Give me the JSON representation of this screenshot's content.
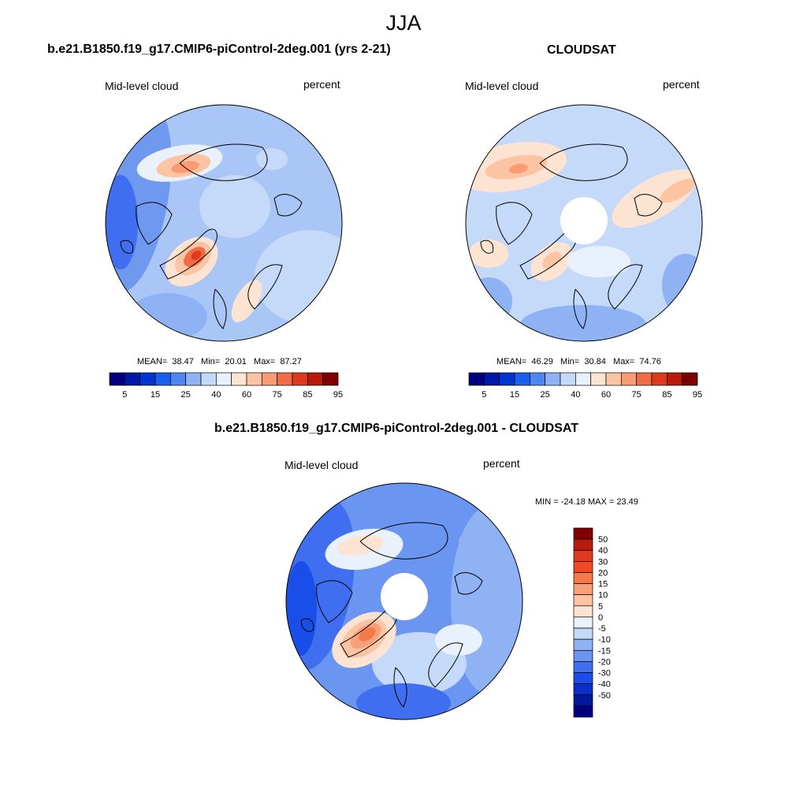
{
  "figure": {
    "season": "JJA"
  },
  "chart_data": [
    {
      "type": "heatmap",
      "projection": "north-polar-stereographic",
      "title": "b.e21.B1850.f19_g17.CMIP6-piControl-2deg.001 (yrs 2-21)",
      "variable_label": "Mid-level cloud",
      "units_label": "percent",
      "stats": {
        "mean_label": "MEAN=",
        "mean": "38.47",
        "min_label": "Min=",
        "min": "20.01",
        "max_label": "Max=",
        "max": "87.27"
      },
      "colorbar": {
        "orientation": "horizontal",
        "tick_labels": [
          "5",
          "15",
          "25",
          "40",
          "60",
          "75",
          "85",
          "95"
        ],
        "colors": [
          "#00007f",
          "#0019a8",
          "#0035d1",
          "#1a5ff0",
          "#4f86f2",
          "#8fb2f5",
          "#c5d9f9",
          "#e8f1fc",
          "#fde4d2",
          "#fcc4a3",
          "#f99c74",
          "#f06c44",
          "#dd3a1e",
          "#b81a0c",
          "#7f0000"
        ]
      },
      "has_data_gap_at_pole": false
    },
    {
      "type": "heatmap",
      "projection": "north-polar-stereographic",
      "title": "CLOUDSAT",
      "variable_label": "Mid-level cloud",
      "units_label": "percent",
      "stats": {
        "mean_label": "MEAN=",
        "mean": "46.29",
        "min_label": "Min=",
        "min": "30.84",
        "max_label": "Max=",
        "max": "74.76"
      },
      "colorbar": {
        "orientation": "horizontal",
        "tick_labels": [
          "5",
          "15",
          "25",
          "40",
          "60",
          "75",
          "85",
          "95"
        ],
        "colors": [
          "#00007f",
          "#0019a8",
          "#0035d1",
          "#1a5ff0",
          "#4f86f2",
          "#8fb2f5",
          "#c5d9f9",
          "#e8f1fc",
          "#fde4d2",
          "#fcc4a3",
          "#f99c74",
          "#f06c44",
          "#dd3a1e",
          "#b81a0c",
          "#7f0000"
        ]
      },
      "has_data_gap_at_pole": true
    },
    {
      "type": "heatmap",
      "projection": "north-polar-stereographic",
      "title": "b.e21.B1850.f19_g17.CMIP6-piControl-2deg.001 - CLOUDSAT",
      "variable_label": "Mid-level cloud",
      "units_label": "percent",
      "stats": {
        "text": "MIN = -24.18 MAX =  23.49",
        "min": -24.18,
        "max": 23.49
      },
      "colorbar": {
        "orientation": "vertical",
        "tick_labels": [
          "50",
          "40",
          "30",
          "20",
          "15",
          "10",
          "5",
          "0",
          "-5",
          "-10",
          "-15",
          "-20",
          "-30",
          "-40",
          "-50"
        ],
        "colors": [
          "#7f0000",
          "#b81a0c",
          "#dd3a1e",
          "#f04a22",
          "#f57a4a",
          "#f9a07a",
          "#fcc4a3",
          "#fde4d2",
          "#e8f1fc",
          "#c5d9f9",
          "#8fb2f5",
          "#6a95f0",
          "#3f6ff0",
          "#1a4ee8",
          "#0a2fc8",
          "#00199a",
          "#000080"
        ]
      },
      "has_data_gap_at_pole": true
    }
  ]
}
